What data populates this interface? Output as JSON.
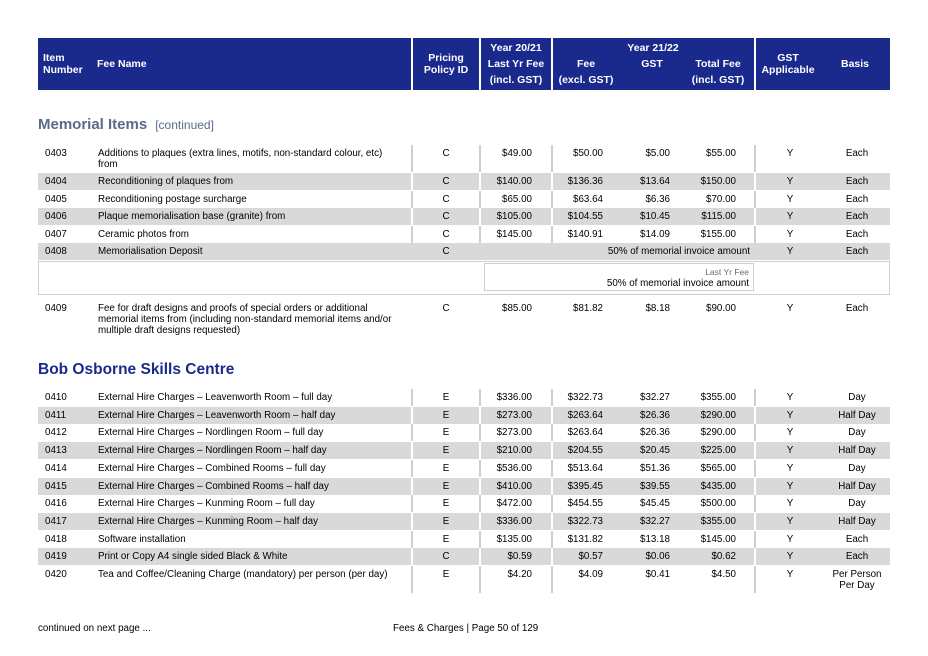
{
  "header": {
    "item_number": "Item\nNumber",
    "fee_name": "Fee Name",
    "pricing_policy": "Pricing\nPolicy ID",
    "year_prev": "Year 20/21",
    "last_yr_fee": "Last Yr Fee",
    "incl_gst_prev": "(incl. GST)",
    "year_curr": "Year 21/22",
    "fee": "Fee",
    "excl_gst": "(excl. GST)",
    "gst": "GST",
    "total_fee": "Total Fee",
    "incl_gst_curr": "(incl. GST)",
    "gst_applicable": "GST\nApplicable",
    "basis": "Basis"
  },
  "memorial": {
    "title": "Memorial Items",
    "continued": "[continued]",
    "rows": [
      {
        "num": "0403",
        "name": "Additions to plaques (extra lines, motifs, non-standard colour, etc) from",
        "policy": "C",
        "last": "$49.00",
        "fee": "$50.00",
        "gst": "$5.00",
        "total": "$55.00",
        "app": "Y",
        "basis": "Each"
      },
      {
        "num": "0404",
        "name": "Reconditioning of plaques from",
        "policy": "C",
        "last": "$140.00",
        "fee": "$136.36",
        "gst": "$13.64",
        "total": "$150.00",
        "app": "Y",
        "basis": "Each"
      },
      {
        "num": "0405",
        "name": "Reconditioning postage surcharge",
        "policy": "C",
        "last": "$65.00",
        "fee": "$63.64",
        "gst": "$6.36",
        "total": "$70.00",
        "app": "Y",
        "basis": "Each"
      },
      {
        "num": "0406",
        "name": "Plaque memorialisation base (granite) from",
        "policy": "C",
        "last": "$105.00",
        "fee": "$104.55",
        "gst": "$10.45",
        "total": "$115.00",
        "app": "Y",
        "basis": "Each"
      },
      {
        "num": "0407",
        "name": "Ceramic photos from",
        "policy": "C",
        "last": "$145.00",
        "fee": "$140.91",
        "gst": "$14.09",
        "total": "$155.00",
        "app": "Y",
        "basis": "Each"
      }
    ],
    "deposit": {
      "num": "0408",
      "name": "Memorialisation Deposit",
      "policy": "C",
      "amount": "50% of memorial invoice amount",
      "app": "Y",
      "basis": "Each",
      "last_label": "Last Yr Fee",
      "last_amount": "50% of memorial invoice amount"
    },
    "row_0409": {
      "num": "0409",
      "name": "Fee for draft designs and proofs of special orders or additional memorial items from (including non-standard memorial items and/or multiple draft designs requested)",
      "policy": "C",
      "last": "$85.00",
      "fee": "$81.82",
      "gst": "$8.18",
      "total": "$90.00",
      "app": "Y",
      "basis": "Each"
    }
  },
  "bob": {
    "title": "Bob Osborne Skills Centre",
    "rows": [
      {
        "num": "0410",
        "name": "External Hire Charges – Leavenworth Room – full day",
        "policy": "E",
        "last": "$336.00",
        "fee": "$322.73",
        "gst": "$32.27",
        "total": "$355.00",
        "app": "Y",
        "basis": "Day"
      },
      {
        "num": "0411",
        "name": "External Hire Charges – Leavenworth Room – half day",
        "policy": "E",
        "last": "$273.00",
        "fee": "$263.64",
        "gst": "$26.36",
        "total": "$290.00",
        "app": "Y",
        "basis": "Half Day"
      },
      {
        "num": "0412",
        "name": "External Hire Charges – Nordlingen Room – full day",
        "policy": "E",
        "last": "$273.00",
        "fee": "$263.64",
        "gst": "$26.36",
        "total": "$290.00",
        "app": "Y",
        "basis": "Day"
      },
      {
        "num": "0413",
        "name": "External Hire Charges – Nordlingen Room – half day",
        "policy": "E",
        "last": "$210.00",
        "fee": "$204.55",
        "gst": "$20.45",
        "total": "$225.00",
        "app": "Y",
        "basis": "Half Day"
      },
      {
        "num": "0414",
        "name": "External Hire Charges – Combined Rooms – full day",
        "policy": "E",
        "last": "$536.00",
        "fee": "$513.64",
        "gst": "$51.36",
        "total": "$565.00",
        "app": "Y",
        "basis": "Day"
      },
      {
        "num": "0415",
        "name": "External Hire Charges – Combined Rooms – half day",
        "policy": "E",
        "last": "$410.00",
        "fee": "$395.45",
        "gst": "$39.55",
        "total": "$435.00",
        "app": "Y",
        "basis": "Half Day"
      },
      {
        "num": "0416",
        "name": "External Hire Charges – Kunming Room – full day",
        "policy": "E",
        "last": "$472.00",
        "fee": "$454.55",
        "gst": "$45.45",
        "total": "$500.00",
        "app": "Y",
        "basis": "Day"
      },
      {
        "num": "0417",
        "name": "External Hire Charges – Kunming Room – half day",
        "policy": "E",
        "last": "$336.00",
        "fee": "$322.73",
        "gst": "$32.27",
        "total": "$355.00",
        "app": "Y",
        "basis": "Half Day"
      },
      {
        "num": "0418",
        "name": "Software installation",
        "policy": "E",
        "last": "$135.00",
        "fee": "$131.82",
        "gst": "$13.18",
        "total": "$145.00",
        "app": "Y",
        "basis": "Each"
      },
      {
        "num": "0419",
        "name": "Print or Copy A4 single sided Black & White",
        "policy": "C",
        "last": "$0.59",
        "fee": "$0.57",
        "gst": "$0.06",
        "total": "$0.62",
        "app": "Y",
        "basis": "Each"
      },
      {
        "num": "0420",
        "name": "Tea and Coffee/Cleaning Charge (mandatory) per person (per day)",
        "policy": "E",
        "last": "$4.20",
        "fee": "$4.09",
        "gst": "$0.41",
        "total": "$4.50",
        "app": "Y",
        "basis": "Per Person\nPer Day"
      }
    ]
  },
  "footer": {
    "continued": "continued on next page ...",
    "page": "Fees & Charges | Page 50 of 129"
  },
  "colors": {
    "header_bg": "#1a2a8c",
    "row_shade": "#d9d9d9",
    "title": "#1a2a8c"
  }
}
